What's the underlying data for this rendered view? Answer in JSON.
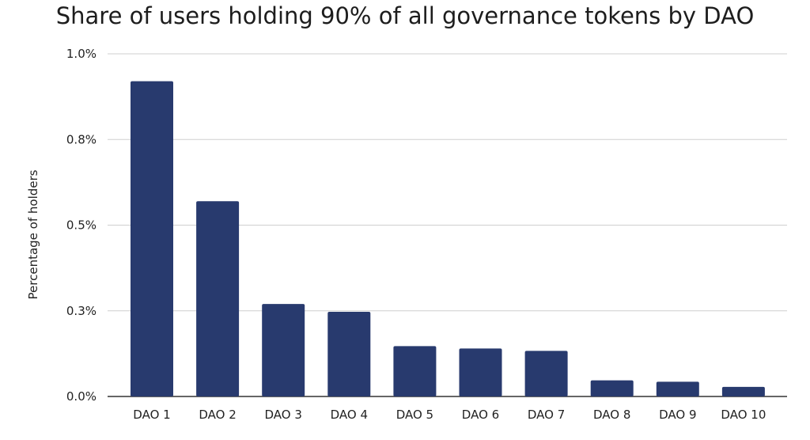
{
  "chart_data": {
    "type": "bar",
    "title": "Share of users holding 90% of all governance tokens by DAO",
    "xlabel": "",
    "ylabel": "Percentage of holders",
    "categories": [
      "DAO 1",
      "DAO 2",
      "DAO 3",
      "DAO 4",
      "DAO 5",
      "DAO 6",
      "DAO 7",
      "DAO 8",
      "DAO 9",
      "DAO 10"
    ],
    "values": [
      0.92,
      0.57,
      0.27,
      0.247,
      0.147,
      0.14,
      0.133,
      0.047,
      0.043,
      0.028
    ],
    "ylim": [
      0,
      1.0
    ],
    "yticks": [
      {
        "value": 0.0,
        "label": "0.0%"
      },
      {
        "value": 0.25,
        "label": "0.3%"
      },
      {
        "value": 0.5,
        "label": "0.5%"
      },
      {
        "value": 0.75,
        "label": "0.8%"
      },
      {
        "value": 1.0,
        "label": "1.0%"
      }
    ],
    "grid": true,
    "legend": "none",
    "bar_color": "#283a6e",
    "grid_color": "#cfcfcf"
  }
}
